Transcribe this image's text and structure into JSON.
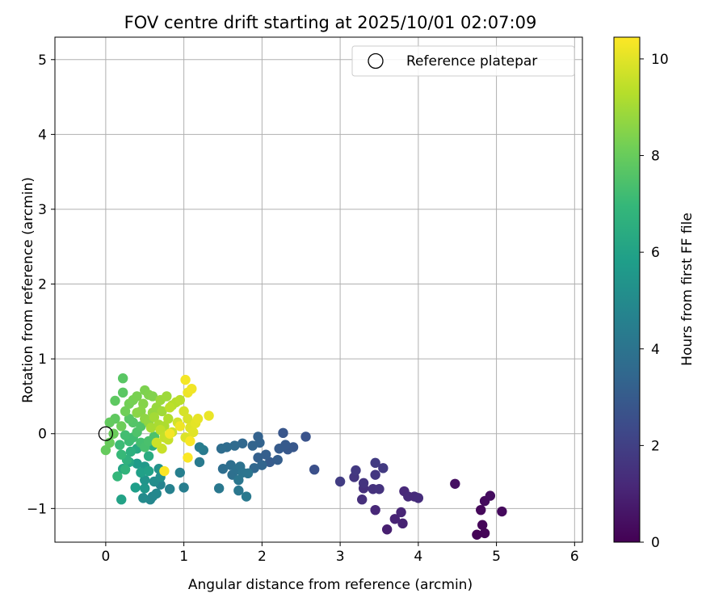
{
  "chart_data": {
    "type": "scatter",
    "title": "FOV centre drift starting at 2025/10/01 02:07:09",
    "xlabel": "Angular distance from reference (arcmin)",
    "ylabel": "Rotation from reference (arcmin)",
    "xlim": [
      -0.65,
      6.1
    ],
    "ylim": [
      -1.45,
      5.3
    ],
    "xticks": [
      0,
      1,
      2,
      3,
      4,
      5,
      6
    ],
    "yticks": [
      -1,
      0,
      1,
      2,
      3,
      4,
      5
    ],
    "grid": true,
    "legend": {
      "placement": "top-right",
      "entries": [
        "Reference platepar"
      ]
    },
    "reference_point": {
      "name": "Reference platepar",
      "x": 0,
      "y": 0,
      "marker": "hollow-circle"
    },
    "colorbar": {
      "label": "Hours from first FF file",
      "range": [
        0,
        10.45
      ],
      "ticks": [
        0,
        2,
        4,
        6,
        8,
        10
      ],
      "colormap": "viridis",
      "stops": [
        "#440154",
        "#482878",
        "#3e4989",
        "#31688e",
        "#26828e",
        "#1f9e89",
        "#35b779",
        "#6ece58",
        "#b5de2b",
        "#fde725"
      ]
    },
    "points": [
      [
        4.75,
        -1.35,
        0.05
      ],
      [
        4.85,
        -1.33,
        0.1
      ],
      [
        4.82,
        -1.22,
        0.15
      ],
      [
        4.8,
        -1.02,
        0.2
      ],
      [
        5.07,
        -1.04,
        0.25
      ],
      [
        4.85,
        -0.9,
        0.3
      ],
      [
        4.92,
        -0.83,
        0.35
      ],
      [
        4.47,
        -0.67,
        0.45
      ],
      [
        3.6,
        -1.28,
        0.9
      ],
      [
        3.8,
        -1.2,
        1.0
      ],
      [
        3.7,
        -1.14,
        1.05
      ],
      [
        3.78,
        -1.05,
        1.1
      ],
      [
        3.45,
        -1.02,
        1.15
      ],
      [
        3.82,
        -0.77,
        1.2
      ],
      [
        3.87,
        -0.84,
        1.25
      ],
      [
        3.95,
        -0.84,
        1.3
      ],
      [
        4.0,
        -0.86,
        1.35
      ],
      [
        3.28,
        -0.88,
        1.4
      ],
      [
        3.3,
        -0.73,
        1.45
      ],
      [
        3.42,
        -0.74,
        1.5
      ],
      [
        3.5,
        -0.74,
        1.55
      ],
      [
        3.3,
        -0.66,
        1.6
      ],
      [
        3.18,
        -0.58,
        1.65
      ],
      [
        3.45,
        -0.55,
        1.7
      ],
      [
        3.2,
        -0.49,
        1.75
      ],
      [
        3.55,
        -0.46,
        1.8
      ],
      [
        3.45,
        -0.39,
        1.85
      ],
      [
        3.0,
        -0.64,
        1.9
      ],
      [
        2.67,
        -0.48,
        2.6
      ],
      [
        2.56,
        -0.04,
        2.7
      ],
      [
        2.27,
        0.01,
        2.8
      ],
      [
        2.4,
        -0.18,
        2.85
      ],
      [
        2.33,
        -0.21,
        2.9
      ],
      [
        2.3,
        -0.15,
        2.95
      ],
      [
        2.22,
        -0.2,
        3.0
      ],
      [
        2.1,
        -0.38,
        3.05
      ],
      [
        2.2,
        -0.35,
        3.1
      ],
      [
        2.05,
        -0.28,
        3.15
      ],
      [
        1.95,
        -0.32,
        3.2
      ],
      [
        1.95,
        -0.04,
        3.25
      ],
      [
        1.97,
        -0.12,
        3.3
      ],
      [
        1.88,
        -0.16,
        3.35
      ],
      [
        2.0,
        -0.42,
        3.4
      ],
      [
        1.9,
        -0.46,
        3.45
      ],
      [
        1.75,
        -0.13,
        3.5
      ],
      [
        1.65,
        -0.16,
        3.6
      ],
      [
        1.55,
        -0.18,
        3.65
      ],
      [
        1.48,
        -0.2,
        3.7
      ],
      [
        1.5,
        -0.47,
        3.75
      ],
      [
        1.6,
        -0.42,
        3.8
      ],
      [
        1.62,
        -0.55,
        3.85
      ],
      [
        1.68,
        -0.48,
        3.9
      ],
      [
        1.72,
        -0.44,
        3.95
      ],
      [
        1.75,
        -0.52,
        4.0
      ],
      [
        1.82,
        -0.53,
        4.05
      ],
      [
        1.7,
        -0.62,
        4.1
      ],
      [
        1.7,
        -0.76,
        4.15
      ],
      [
        1.45,
        -0.73,
        4.2
      ],
      [
        1.8,
        -0.84,
        4.25
      ],
      [
        1.2,
        -0.38,
        4.3
      ],
      [
        1.25,
        -0.22,
        4.35
      ],
      [
        1.2,
        -0.18,
        4.4
      ],
      [
        1.0,
        -0.72,
        4.45
      ],
      [
        0.95,
        -0.52,
        4.5
      ],
      [
        0.82,
        -0.74,
        4.6
      ],
      [
        0.7,
        -0.68,
        4.7
      ],
      [
        0.6,
        -0.84,
        4.8
      ],
      [
        0.57,
        -0.88,
        4.85
      ],
      [
        0.65,
        -0.8,
        4.9
      ],
      [
        0.48,
        -0.86,
        5.0
      ],
      [
        0.62,
        -0.64,
        5.1
      ],
      [
        0.7,
        -0.58,
        5.2
      ],
      [
        0.68,
        -0.47,
        5.3
      ],
      [
        0.5,
        -0.62,
        5.4
      ],
      [
        0.5,
        -0.73,
        5.5
      ],
      [
        0.5,
        -0.44,
        5.6
      ],
      [
        0.4,
        -0.4,
        5.7
      ],
      [
        0.38,
        -0.72,
        5.8
      ],
      [
        0.45,
        -0.52,
        5.9
      ],
      [
        0.55,
        -0.5,
        5.95
      ],
      [
        0.2,
        -0.88,
        6.0
      ],
      [
        0.22,
        -0.47,
        6.1
      ],
      [
        0.3,
        -0.38,
        6.2
      ],
      [
        0.4,
        -0.2,
        6.3
      ],
      [
        0.55,
        -0.3,
        6.4
      ],
      [
        0.6,
        -0.16,
        6.5
      ],
      [
        0.32,
        -0.24,
        6.6
      ],
      [
        0.27,
        -0.35,
        6.7
      ],
      [
        0.25,
        -0.48,
        6.8
      ],
      [
        0.15,
        -0.57,
        6.9
      ],
      [
        0.2,
        -0.28,
        7.0
      ],
      [
        0.18,
        -0.15,
        7.1
      ],
      [
        0.3,
        -0.1,
        7.15
      ],
      [
        0.35,
        -0.05,
        7.2
      ],
      [
        0.25,
        -0.02,
        7.25
      ],
      [
        0.45,
        -0.12,
        7.3
      ],
      [
        0.5,
        -0.18,
        7.35
      ],
      [
        0.55,
        -0.1,
        7.4
      ],
      [
        0.62,
        -0.04,
        7.45
      ],
      [
        0.4,
        0.02,
        7.5
      ],
      [
        0.45,
        0.1,
        7.55
      ],
      [
        0.35,
        0.15,
        7.6
      ],
      [
        0.3,
        0.2,
        7.65
      ],
      [
        0.22,
        0.74,
        7.7
      ],
      [
        0.22,
        0.55,
        7.75
      ],
      [
        0.12,
        0.44,
        7.8
      ],
      [
        0.12,
        0.2,
        7.85
      ],
      [
        0.05,
        0.15,
        7.9
      ],
      [
        0.0,
        -0.22,
        7.95
      ],
      [
        0.05,
        -0.12,
        8.0
      ],
      [
        0.1,
        0.0,
        8.05
      ],
      [
        0.2,
        0.1,
        8.1
      ],
      [
        0.25,
        0.3,
        8.15
      ],
      [
        0.3,
        0.4,
        8.2
      ],
      [
        0.35,
        0.45,
        8.25
      ],
      [
        0.4,
        0.5,
        8.3
      ],
      [
        0.5,
        0.58,
        8.35
      ],
      [
        0.55,
        0.52,
        8.4
      ],
      [
        0.6,
        0.5,
        8.45
      ],
      [
        0.48,
        0.4,
        8.5
      ],
      [
        0.45,
        0.3,
        8.55
      ],
      [
        0.4,
        0.28,
        8.6
      ],
      [
        0.5,
        0.2,
        8.65
      ],
      [
        0.55,
        0.15,
        8.7
      ],
      [
        0.6,
        0.28,
        8.75
      ],
      [
        0.65,
        0.35,
        8.8
      ],
      [
        0.7,
        0.45,
        8.85
      ],
      [
        0.78,
        0.5,
        8.9
      ],
      [
        0.72,
        0.3,
        8.95
      ],
      [
        0.62,
        0.22,
        9.0
      ],
      [
        0.58,
        0.08,
        9.05
      ],
      [
        0.68,
        0.12,
        9.1
      ],
      [
        0.75,
        0.1,
        9.15
      ],
      [
        0.8,
        0.2,
        9.2
      ],
      [
        0.85,
        0.38,
        9.25
      ],
      [
        0.9,
        0.42,
        9.3
      ],
      [
        0.95,
        0.45,
        9.35
      ],
      [
        0.82,
        0.35,
        9.4
      ],
      [
        0.7,
        0.05,
        9.45
      ],
      [
        0.75,
        -0.05,
        9.5
      ],
      [
        0.8,
        -0.08,
        9.55
      ],
      [
        0.72,
        -0.2,
        9.6
      ],
      [
        0.65,
        -0.12,
        9.65
      ],
      [
        0.85,
        0.02,
        9.7
      ],
      [
        0.92,
        0.15,
        9.75
      ],
      [
        1.0,
        0.3,
        9.8
      ],
      [
        1.05,
        0.2,
        9.85
      ],
      [
        1.02,
        -0.05,
        9.9
      ],
      [
        1.08,
        0.08,
        9.95
      ],
      [
        1.12,
        0.02,
        10.0
      ],
      [
        1.15,
        0.14,
        10.05
      ],
      [
        1.18,
        0.2,
        10.1
      ],
      [
        1.32,
        0.24,
        10.15
      ],
      [
        1.05,
        0.55,
        10.2
      ],
      [
        1.1,
        0.6,
        10.25
      ],
      [
        1.02,
        0.72,
        10.3
      ],
      [
        1.08,
        -0.1,
        10.35
      ],
      [
        1.05,
        -0.32,
        10.4
      ],
      [
        0.75,
        -0.5,
        10.38
      ],
      [
        0.82,
        0.0,
        10.3
      ],
      [
        0.95,
        0.1,
        10.22
      ]
    ]
  }
}
